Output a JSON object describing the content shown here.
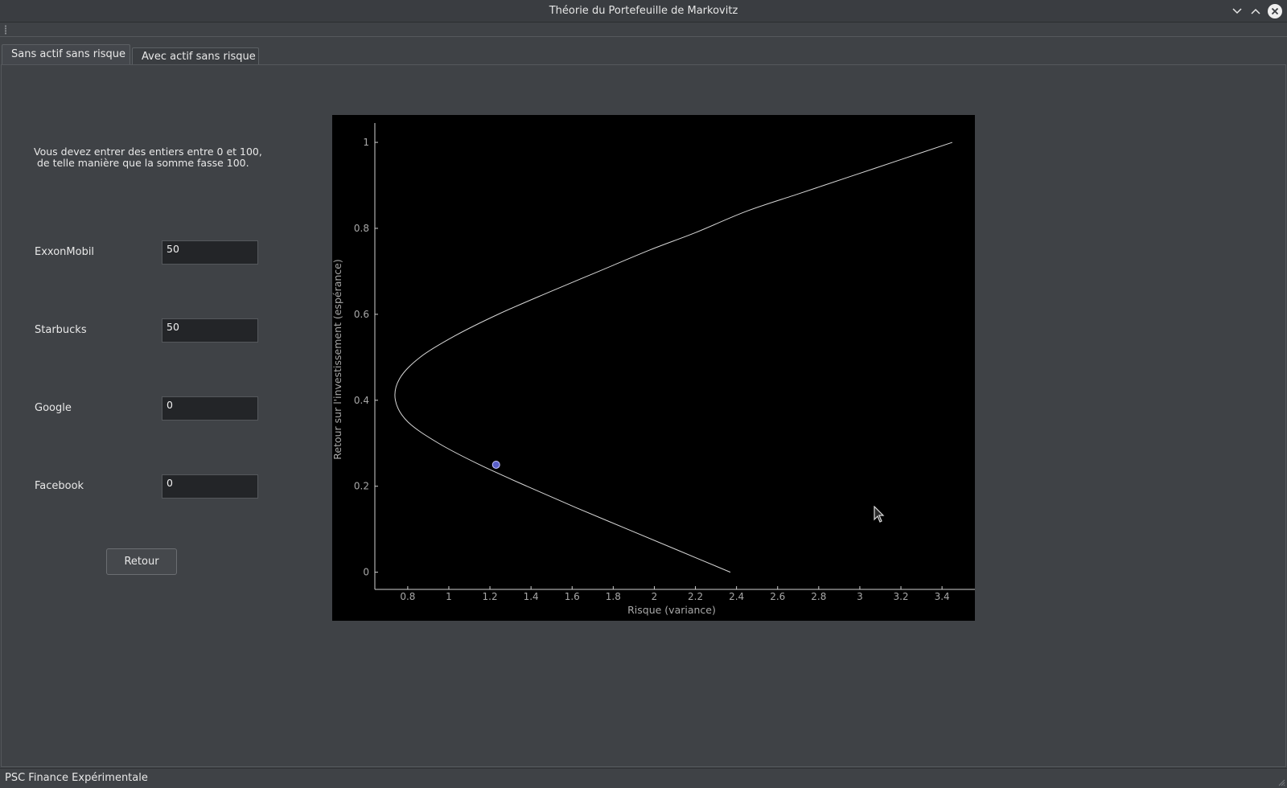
{
  "window": {
    "title": "Théorie du Portefeuille de Markovitz"
  },
  "tabs": [
    {
      "label": "Sans actif sans risque",
      "active": true
    },
    {
      "label": "Avec actif sans risque",
      "active": false
    }
  ],
  "form": {
    "instructions": "Vous devez entrer des entiers entre 0 et 100,\n de telle manière que la somme fasse 100.",
    "fields": [
      {
        "label": "ExxonMobil",
        "value": "50"
      },
      {
        "label": "Starbucks",
        "value": "50"
      },
      {
        "label": "Google",
        "value": "0"
      },
      {
        "label": "Facebook",
        "value": "0"
      }
    ],
    "back_button": "Retour"
  },
  "chart_data": {
    "type": "line",
    "title": "",
    "xlabel": "Risque (variance)",
    "ylabel": "Retour sur l'investissement (espérance)",
    "xlim": [
      0.64,
      3.56
    ],
    "ylim": [
      -0.04,
      1.045
    ],
    "xticks": [
      0.8,
      1,
      1.2,
      1.4,
      1.6,
      1.8,
      2,
      2.2,
      2.4,
      2.6,
      2.8,
      3,
      3.2,
      3.4
    ],
    "yticks": [
      0,
      0.2,
      0.4,
      0.6,
      0.8,
      1
    ],
    "grid": false,
    "background": "#000000",
    "line_color": "#d8d8d8",
    "series": [
      {
        "x": [
          2.37,
          2.12,
          1.87,
          1.62,
          1.38,
          1.15,
          0.95,
          0.8,
          0.74,
          0.76,
          0.86,
          1.03,
          1.24,
          1.48,
          1.73,
          1.98,
          2.2,
          2.45,
          2.7,
          2.95,
          3.2,
          3.45
        ],
        "y": [
          0.0,
          0.05,
          0.1,
          0.15,
          0.2,
          0.25,
          0.3,
          0.35,
          0.4,
          0.45,
          0.5,
          0.55,
          0.6,
          0.65,
          0.7,
          0.75,
          0.79,
          0.84,
          0.88,
          0.92,
          0.96,
          1.0
        ]
      }
    ],
    "point": {
      "x": 1.23,
      "y": 0.25,
      "color": "#5a5fc8"
    }
  },
  "statusbar": {
    "text": "PSC Finance Expérimentale"
  }
}
